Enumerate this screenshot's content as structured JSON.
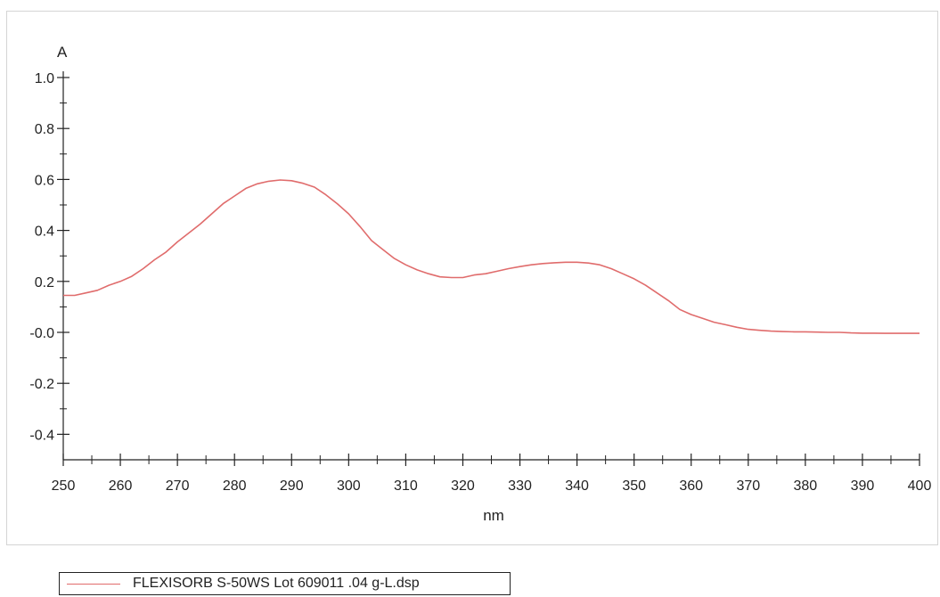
{
  "chart_data": {
    "type": "line",
    "ylabel": "A",
    "xlabel": "nm",
    "xlim": [
      250,
      400
    ],
    "ylim": [
      -0.5,
      1.0
    ],
    "x_ticks": [
      "250",
      "260",
      "270",
      "280",
      "290",
      "300",
      "310",
      "320",
      "330",
      "340",
      "350",
      "360",
      "370",
      "380",
      "390",
      "400"
    ],
    "y_ticks": [
      "1.0",
      "0.8",
      "0.6",
      "0.4",
      "0.2",
      "-0.0",
      "-0.2",
      "-0.4"
    ],
    "y_tick_values": [
      1.0,
      0.8,
      0.6,
      0.4,
      0.2,
      0.0,
      -0.2,
      -0.4
    ],
    "grid": false,
    "legend_position": "bottom-left",
    "series": [
      {
        "name": "FLEXISORB S-50WS Lot 609011 .04 g-L.dsp",
        "color": "#e06c6c",
        "x": [
          250,
          252,
          254,
          256,
          258,
          260,
          262,
          264,
          266,
          268,
          270,
          272,
          274,
          276,
          278,
          280,
          282,
          284,
          286,
          288,
          290,
          292,
          294,
          296,
          298,
          300,
          302,
          304,
          306,
          308,
          310,
          312,
          314,
          316,
          318,
          320,
          322,
          324,
          326,
          328,
          330,
          332,
          334,
          336,
          338,
          340,
          342,
          344,
          346,
          348,
          350,
          352,
          354,
          356,
          358,
          360,
          362,
          364,
          366,
          368,
          370,
          372,
          374,
          376,
          378,
          380,
          382,
          384,
          386,
          388,
          390,
          392,
          394,
          396,
          398,
          400
        ],
        "y": [
          0.145,
          0.145,
          0.155,
          0.165,
          0.185,
          0.2,
          0.22,
          0.25,
          0.285,
          0.315,
          0.355,
          0.39,
          0.425,
          0.465,
          0.505,
          0.535,
          0.565,
          0.583,
          0.593,
          0.598,
          0.595,
          0.585,
          0.57,
          0.54,
          0.505,
          0.465,
          0.415,
          0.36,
          0.325,
          0.29,
          0.265,
          0.245,
          0.23,
          0.218,
          0.215,
          0.215,
          0.225,
          0.23,
          0.24,
          0.25,
          0.258,
          0.265,
          0.27,
          0.273,
          0.275,
          0.275,
          0.272,
          0.265,
          0.25,
          0.23,
          0.21,
          0.185,
          0.155,
          0.125,
          0.09,
          0.07,
          0.055,
          0.04,
          0.03,
          0.02,
          0.012,
          0.008,
          0.005,
          0.003,
          0.002,
          0.002,
          0.001,
          0.0,
          0.0,
          -0.002,
          -0.003,
          -0.003,
          -0.004,
          -0.004,
          -0.004,
          -0.004
        ]
      }
    ]
  }
}
